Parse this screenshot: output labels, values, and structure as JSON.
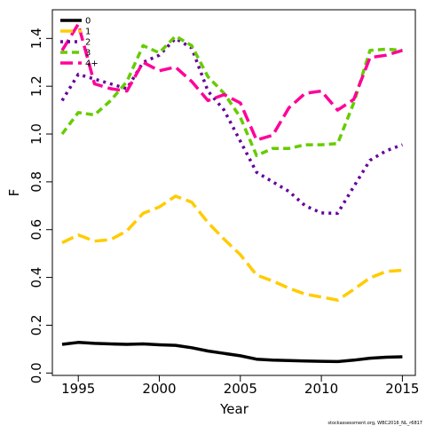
{
  "chart_data": {
    "type": "line",
    "xlabel": "Year",
    "ylabel": "F",
    "xlim": [
      1993.4,
      2015.8
    ],
    "ylim": [
      -0.01,
      1.52
    ],
    "x_ticks": [
      1995,
      2000,
      2005,
      2010,
      2015
    ],
    "x_tick_labels": [
      "1995",
      "2000",
      "2005",
      "2010",
      "2015"
    ],
    "y_ticks": [
      0.0,
      0.2,
      0.4,
      0.6,
      0.8,
      1.0,
      1.2,
      1.4
    ],
    "y_tick_labels": [
      "0.0",
      "0.2",
      "0.4",
      "0.6",
      "0.8",
      "1.0",
      "1.2",
      "1.4"
    ],
    "legend_position": "top-left",
    "credit": "stockassessment.org, WBC2016_NL_r6817",
    "x": [
      1994,
      1995,
      1996,
      1997,
      1998,
      1999,
      2000,
      2001,
      2002,
      2003,
      2004,
      2005,
      2006,
      2007,
      2008,
      2009,
      2010,
      2011,
      2012,
      2013,
      2014,
      2015
    ],
    "series": [
      {
        "name": "0",
        "color": "#000000",
        "dash": "solid",
        "values": [
          0.12,
          0.128,
          0.124,
          0.122,
          0.12,
          0.122,
          0.118,
          0.116,
          0.106,
          0.092,
          0.082,
          0.072,
          0.058,
          0.054,
          0.052,
          0.05,
          0.049,
          0.048,
          0.054,
          0.062,
          0.066,
          0.068
        ]
      },
      {
        "name": "1",
        "color": "#ffcc00",
        "dash": "longdash",
        "values": [
          0.545,
          0.578,
          0.552,
          0.558,
          0.595,
          0.668,
          0.695,
          0.74,
          0.715,
          0.63,
          0.56,
          0.495,
          0.41,
          0.385,
          0.355,
          0.33,
          0.318,
          0.305,
          0.35,
          0.398,
          0.425,
          0.43
        ]
      },
      {
        "name": "2",
        "color": "#66009a",
        "dash": "dotted",
        "values": [
          1.14,
          1.25,
          1.23,
          1.21,
          1.19,
          1.3,
          1.33,
          1.4,
          1.36,
          1.18,
          1.1,
          0.97,
          0.84,
          0.8,
          0.76,
          0.7,
          0.67,
          0.668,
          0.78,
          0.89,
          0.93,
          0.955
        ]
      },
      {
        "name": "3",
        "color": "#66cc00",
        "dash": "dashed",
        "values": [
          1.0,
          1.09,
          1.08,
          1.14,
          1.22,
          1.37,
          1.34,
          1.41,
          1.37,
          1.24,
          1.17,
          1.07,
          0.91,
          0.94,
          0.94,
          0.955,
          0.955,
          0.96,
          1.13,
          1.35,
          1.355,
          1.35
        ]
      },
      {
        "name": "4+",
        "color": "#ff0099",
        "dash": "longdash",
        "values": [
          1.35,
          1.46,
          1.21,
          1.19,
          1.18,
          1.3,
          1.265,
          1.28,
          1.22,
          1.14,
          1.165,
          1.13,
          0.975,
          0.995,
          1.11,
          1.17,
          1.18,
          1.1,
          1.145,
          1.32,
          1.33,
          1.35
        ]
      }
    ]
  }
}
